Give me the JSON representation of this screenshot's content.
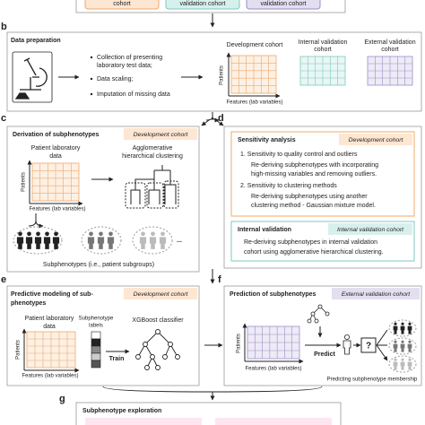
{
  "top": {
    "cohorts": [
      "cohort",
      "validation cohort",
      "validation cohort"
    ]
  },
  "b": {
    "letter": "b",
    "title": "Data preparation",
    "bullets": [
      [
        "Collection of presenting",
        "laboratory test data;"
      ],
      [
        "Data scaling;"
      ],
      [
        "Imputation of missing data"
      ]
    ],
    "dev": "Development cohort",
    "internal": [
      "Internal validation",
      "cohort"
    ],
    "external": [
      "External validation",
      "cohort"
    ],
    "y_label": "Patients",
    "x_label": "Features (lab variables)"
  },
  "c": {
    "letter": "c",
    "title": "Derivation of subphenotypes",
    "tag": "Development cohort",
    "data_label": [
      "Patient laboratory",
      "data"
    ],
    "method": [
      "Agglomerative",
      "hierarchical clustering"
    ],
    "y_label": "Patients",
    "x_label": "Features (lab variables)",
    "ellipsis": "...",
    "caption": "Subphenotypes (i.e., patient subgroups)"
  },
  "d": {
    "letter": "d",
    "sensitivity": {
      "title": "Sensitivity analysis",
      "tag": "Development cohort",
      "lines": [
        "1. Sensitivity to quality control and outliers",
        "Re-deriving subphenotypes with incorporating",
        "high-missing variables and removing outliers.",
        "2. Sensitivity to clustering methods",
        "Re-deriving subphenotypes using another",
        "clustering method - Gaussian mixture model."
      ]
    },
    "internal": {
      "title": "Internal validation",
      "tag": "Internal validation cohort",
      "lines": [
        "Re-deriving subphenotypes in internal validation",
        "cohort using agglomerative hierarchical clustering."
      ]
    }
  },
  "e": {
    "letter": "e",
    "title": [
      "Predictive modeling of sub-",
      "phenotypes"
    ],
    "tag": "Development cohort",
    "data_label": [
      "Patient laboratory",
      "data"
    ],
    "labels": [
      "Subphenotype",
      "labels"
    ],
    "train": "Train",
    "model": "XGBoost classifier",
    "y_label": "Patients",
    "x_label": "Features (lab variables)"
  },
  "f": {
    "letter": "f",
    "title": "Prediction of subphenotypes",
    "tag": "External validation cohort",
    "predict": "Predict",
    "unknown": "?",
    "y_label": "Patients",
    "x_label": "Features (lab variables)",
    "caption": "Predicting subphenotype membership"
  },
  "g": {
    "letter": "g",
    "title": "Subphenotype exploration"
  }
}
